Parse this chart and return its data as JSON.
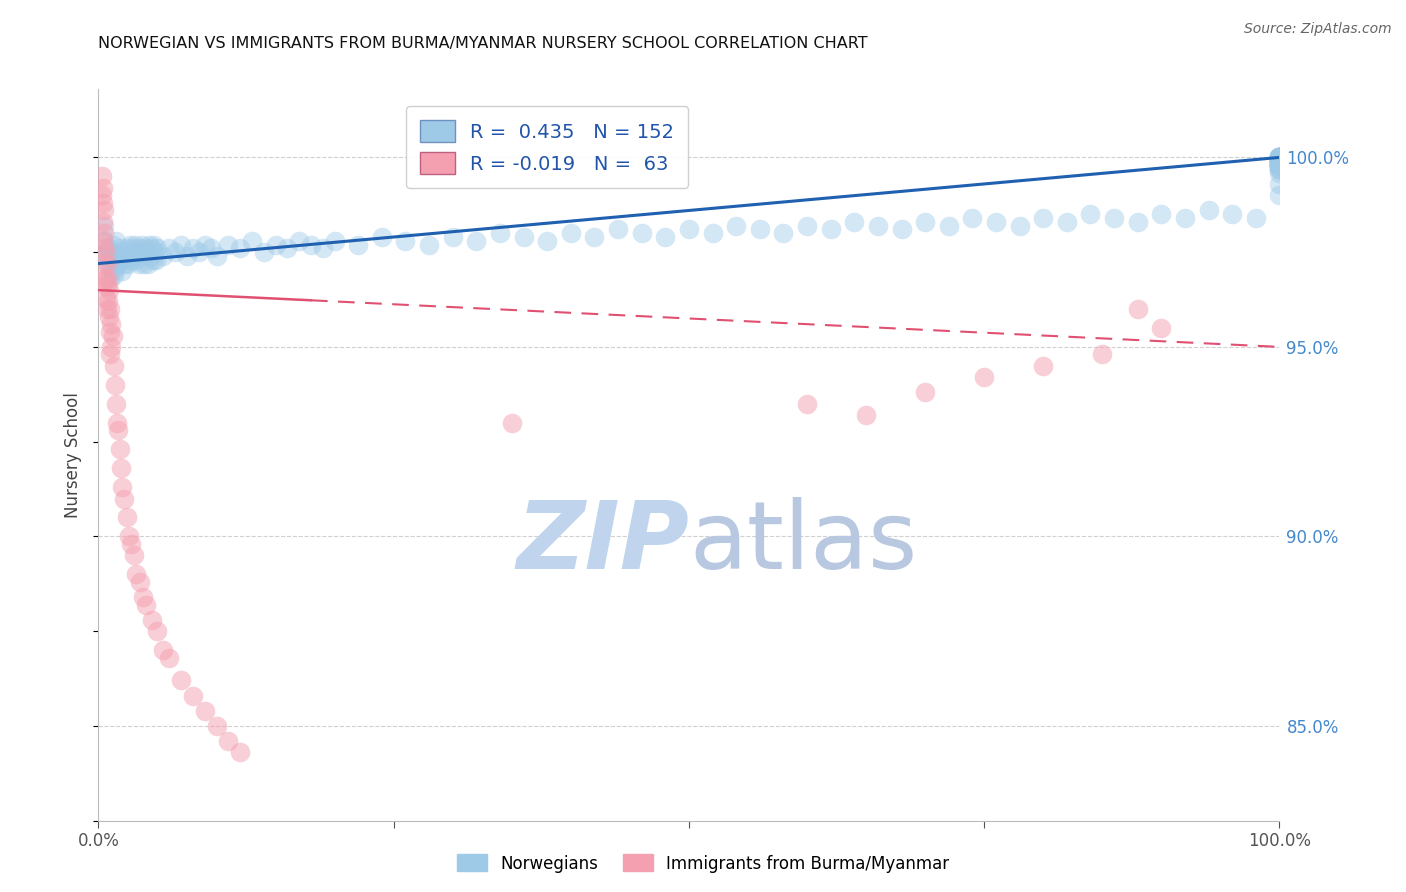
{
  "title": "NORWEGIAN VS IMMIGRANTS FROM BURMA/MYANMAR NURSERY SCHOOL CORRELATION CHART",
  "source": "Source: ZipAtlas.com",
  "ylabel": "Nursery School",
  "ytick_labels": [
    "100.0%",
    "95.0%",
    "90.0%",
    "85.0%"
  ],
  "ytick_values": [
    1.0,
    0.95,
    0.9,
    0.85
  ],
  "xmin": 0.0,
  "xmax": 1.0,
  "ymin": 0.825,
  "ymax": 1.018,
  "legend_blue_label": "Norwegians",
  "legend_pink_label": "Immigrants from Burma/Myanmar",
  "R_blue": 0.435,
  "N_blue": 152,
  "R_pink": -0.019,
  "N_pink": 63,
  "blue_color": "#9ecae8",
  "pink_color": "#f4a0b0",
  "blue_line_color": "#2060b0",
  "pink_line_color": "#e05070",
  "grid_color": "#d0d0d0",
  "title_color": "#111111",
  "axis_label_color": "#444444",
  "right_tick_color": "#4488cc",
  "watermark_zip_color": "#c0d4ee",
  "watermark_atlas_color": "#b8c8e0",
  "blue_scatter_x": [
    0.005,
    0.005,
    0.005,
    0.007,
    0.008,
    0.009,
    0.01,
    0.01,
    0.011,
    0.011,
    0.012,
    0.012,
    0.013,
    0.013,
    0.014,
    0.015,
    0.015,
    0.016,
    0.017,
    0.018,
    0.019,
    0.02,
    0.021,
    0.022,
    0.023,
    0.024,
    0.025,
    0.026,
    0.027,
    0.028,
    0.029,
    0.03,
    0.031,
    0.032,
    0.033,
    0.034,
    0.035,
    0.036,
    0.037,
    0.038,
    0.039,
    0.04,
    0.041,
    0.042,
    0.043,
    0.044,
    0.045,
    0.046,
    0.047,
    0.048,
    0.049,
    0.05,
    0.055,
    0.06,
    0.065,
    0.07,
    0.075,
    0.08,
    0.085,
    0.09,
    0.095,
    0.1,
    0.11,
    0.12,
    0.13,
    0.14,
    0.15,
    0.16,
    0.17,
    0.18,
    0.19,
    0.2,
    0.22,
    0.24,
    0.26,
    0.28,
    0.3,
    0.32,
    0.34,
    0.36,
    0.38,
    0.4,
    0.42,
    0.44,
    0.46,
    0.48,
    0.5,
    0.52,
    0.54,
    0.56,
    0.58,
    0.6,
    0.62,
    0.64,
    0.66,
    0.68,
    0.7,
    0.72,
    0.74,
    0.76,
    0.78,
    0.8,
    0.82,
    0.84,
    0.86,
    0.88,
    0.9,
    0.92,
    0.94,
    0.96,
    0.98,
    1.0,
    1.0,
    1.0,
    1.0,
    1.0,
    1.0,
    1.0,
    1.0,
    1.0,
    1.0,
    1.0,
    1.0,
    1.0,
    1.0,
    1.0,
    1.0,
    1.0,
    1.0,
    1.0,
    1.0,
    1.0,
    1.0,
    1.0,
    1.0,
    1.0,
    1.0,
    1.0,
    1.0,
    1.0,
    1.0,
    1.0,
    1.0,
    1.0,
    1.0,
    1.0,
    1.0,
    1.0,
    1.0,
    1.0,
    1.0,
    1.0
  ],
  "blue_scatter_y": [
    0.974,
    0.978,
    0.982,
    0.975,
    0.976,
    0.972,
    0.968,
    0.974,
    0.971,
    0.975,
    0.97,
    0.977,
    0.973,
    0.969,
    0.975,
    0.971,
    0.978,
    0.974,
    0.972,
    0.976,
    0.973,
    0.97,
    0.975,
    0.972,
    0.974,
    0.976,
    0.972,
    0.975,
    0.977,
    0.973,
    0.976,
    0.974,
    0.977,
    0.973,
    0.975,
    0.972,
    0.976,
    0.974,
    0.977,
    0.975,
    0.972,
    0.976,
    0.975,
    0.972,
    0.977,
    0.974,
    0.976,
    0.973,
    0.977,
    0.975,
    0.973,
    0.976,
    0.974,
    0.976,
    0.975,
    0.977,
    0.974,
    0.976,
    0.975,
    0.977,
    0.976,
    0.974,
    0.977,
    0.976,
    0.978,
    0.975,
    0.977,
    0.976,
    0.978,
    0.977,
    0.976,
    0.978,
    0.977,
    0.979,
    0.978,
    0.977,
    0.979,
    0.978,
    0.98,
    0.979,
    0.978,
    0.98,
    0.979,
    0.981,
    0.98,
    0.979,
    0.981,
    0.98,
    0.982,
    0.981,
    0.98,
    0.982,
    0.981,
    0.983,
    0.982,
    0.981,
    0.983,
    0.982,
    0.984,
    0.983,
    0.982,
    0.984,
    0.983,
    0.985,
    0.984,
    0.983,
    0.985,
    0.984,
    0.986,
    0.985,
    0.984,
    0.99,
    0.993,
    0.996,
    0.997,
    0.998,
    0.999,
    1.0,
    0.998,
    0.997,
    0.999,
    1.0,
    0.998,
    0.999,
    1.0,
    0.998,
    0.997,
    0.999,
    1.0,
    0.998,
    0.999,
    1.0,
    0.998,
    0.999,
    1.0,
    0.998,
    0.999,
    1.0,
    0.998,
    0.999,
    1.0,
    0.998,
    0.999,
    1.0,
    0.998,
    0.999,
    1.0,
    0.998,
    0.999,
    1.0,
    0.998,
    0.999
  ],
  "pink_scatter_x": [
    0.003,
    0.003,
    0.004,
    0.004,
    0.004,
    0.004,
    0.005,
    0.005,
    0.005,
    0.005,
    0.005,
    0.006,
    0.006,
    0.006,
    0.007,
    0.007,
    0.007,
    0.008,
    0.008,
    0.009,
    0.009,
    0.01,
    0.01,
    0.01,
    0.011,
    0.011,
    0.012,
    0.013,
    0.014,
    0.015,
    0.016,
    0.017,
    0.018,
    0.019,
    0.02,
    0.022,
    0.024,
    0.026,
    0.028,
    0.03,
    0.032,
    0.035,
    0.038,
    0.04,
    0.045,
    0.05,
    0.055,
    0.06,
    0.07,
    0.08,
    0.09,
    0.1,
    0.11,
    0.12,
    0.35,
    0.6,
    0.65,
    0.7,
    0.75,
    0.8,
    0.85,
    0.88,
    0.9
  ],
  "pink_scatter_y": [
    0.995,
    0.99,
    0.992,
    0.988,
    0.983,
    0.978,
    0.986,
    0.98,
    0.976,
    0.972,
    0.968,
    0.975,
    0.968,
    0.963,
    0.972,
    0.966,
    0.96,
    0.968,
    0.962,
    0.965,
    0.958,
    0.96,
    0.954,
    0.948,
    0.956,
    0.95,
    0.953,
    0.945,
    0.94,
    0.935,
    0.93,
    0.928,
    0.923,
    0.918,
    0.913,
    0.91,
    0.905,
    0.9,
    0.898,
    0.895,
    0.89,
    0.888,
    0.884,
    0.882,
    0.878,
    0.875,
    0.87,
    0.868,
    0.862,
    0.858,
    0.854,
    0.85,
    0.846,
    0.843,
    0.93,
    0.935,
    0.932,
    0.938,
    0.942,
    0.945,
    0.948,
    0.96,
    0.955
  ]
}
